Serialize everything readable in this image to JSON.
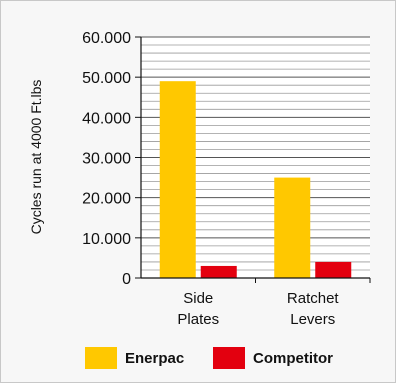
{
  "chart_data": {
    "type": "bar",
    "ylabel": "Cycles run at 4000 Ft.lbs",
    "categories": [
      [
        "Side",
        "Plates"
      ],
      [
        "Ratchet",
        "Levers"
      ]
    ],
    "series": [
      {
        "name": "Enerpac",
        "values": [
          49000,
          25000
        ],
        "color": "#ffc800"
      },
      {
        "name": "Competitor",
        "values": [
          3000,
          4000
        ],
        "color": "#e3000f"
      }
    ],
    "ylim": [
      0,
      60000
    ],
    "major_ticks": [
      0,
      10000,
      20000,
      30000,
      40000,
      50000,
      60000
    ],
    "tick_labels": [
      "0",
      "10.000",
      "20.000",
      "30.000",
      "40.000",
      "50.000",
      "60.000"
    ],
    "minor_step": 2000,
    "grid": true,
    "legend": "bottom"
  }
}
